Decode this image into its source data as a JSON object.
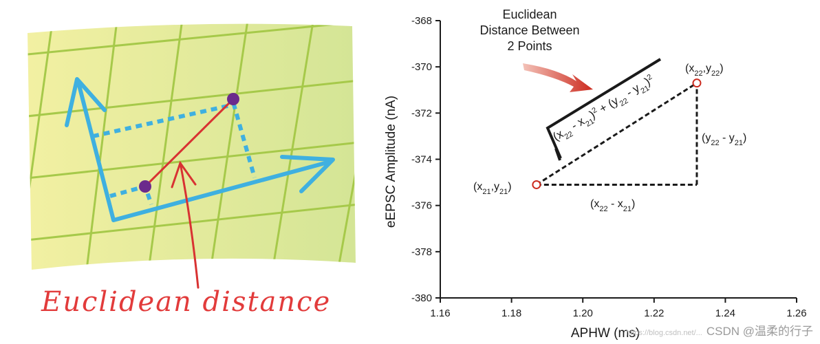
{
  "left": {
    "caption": "Euclidean distance"
  },
  "right": {
    "title_lines": [
      "Euclidean",
      "Distance Between",
      "2 Points"
    ],
    "formula": {
      "sqrt": "√",
      "t1": "(x",
      "s1": "22",
      "t2": " - x",
      "s2": "21",
      "t3": ")",
      "e1": "2",
      "t4": " + (y",
      "s3": "22",
      "t5": " - y",
      "s4": "21",
      "t6": ")",
      "e2": "2"
    },
    "point1_label": {
      "a": "(x",
      "sa": "21",
      "b": ",y",
      "sb": "21",
      "c": ")"
    },
    "point2_label": {
      "a": "(x",
      "sa": "22",
      "b": ",y",
      "sb": "22",
      "c": ")"
    },
    "dx_label": {
      "a": "(x",
      "sa": "22",
      "b": " - x",
      "sb": "21",
      "c": ")"
    },
    "dy_label": {
      "a": "(y",
      "sa": "22",
      "b": " - y",
      "sb": "21",
      "c": ")"
    }
  },
  "chart_data": {
    "type": "scatter",
    "xlabel": "APHW (ms)",
    "ylabel": "eEPSC Amplitude (nA)",
    "xlim": [
      1.16,
      1.26
    ],
    "ylim": [
      -380,
      -368
    ],
    "x_ticks": [
      1.16,
      1.18,
      1.2,
      1.22,
      1.24,
      1.26
    ],
    "x_tick_labels": [
      "1.16",
      "1.18",
      "1.20",
      "1.22",
      "1.24",
      "1.26"
    ],
    "y_ticks": [
      -368,
      -370,
      -372,
      -374,
      -376,
      -378,
      -380
    ],
    "y_tick_labels": [
      "-368",
      "-370",
      "-372",
      "-374",
      "-376",
      "-378",
      "-380"
    ],
    "points": [
      {
        "x": 1.187,
        "y": -375.1
      },
      {
        "x": 1.232,
        "y": -370.7
      }
    ],
    "point_color": "#cc2a1e",
    "grid": false
  },
  "watermark": {
    "small": "https://blog.csdn.net/...",
    "main": "CSDN @温柔的行子"
  },
  "colors": {
    "grid_bg": "#e6eba0",
    "grid_line": "#a6c94a",
    "axis_blue": "#3fb0e0",
    "point_purple": "#6b2a8c",
    "distance_red": "#d83232"
  }
}
